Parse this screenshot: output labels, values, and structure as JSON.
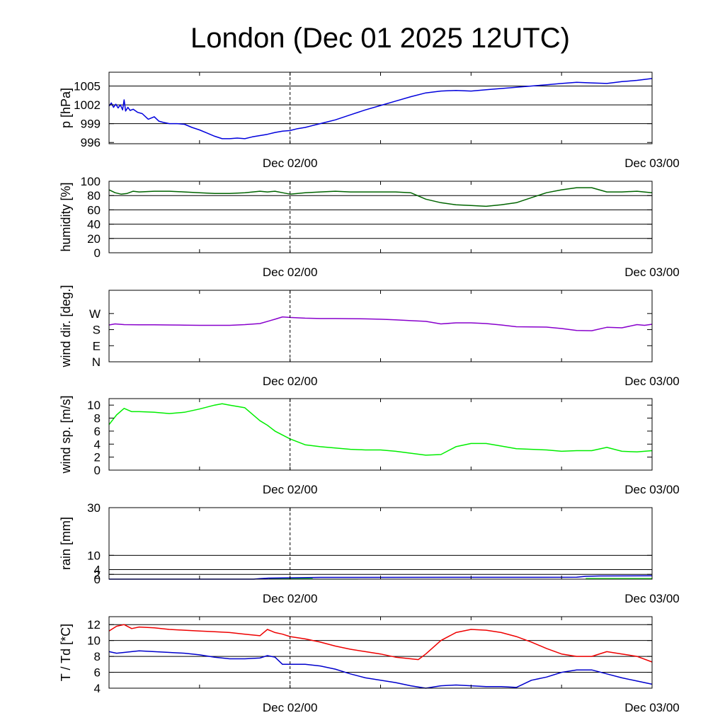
{
  "title": "London (Dec 01 2025 12UTC)",
  "x_axis": {
    "unit": "hours since Dec 01 12UTC",
    "range": [
      0,
      36
    ],
    "marker_hour": 12,
    "tick_labels": [
      {
        "label": "Dec 02/00",
        "hour": 12
      },
      {
        "label": "Dec 03/00",
        "hour": 36
      }
    ]
  },
  "chart_data": [
    {
      "type": "line",
      "name": "pressure",
      "ylabel": "p [hPa]",
      "ylim": [
        995.8,
        1007.2
      ],
      "ticks": [
        {
          "v": 996,
          "l": "996"
        },
        {
          "v": 999,
          "l": "999"
        },
        {
          "v": 1002,
          "l": "1002"
        },
        {
          "v": 1005,
          "l": "1005"
        }
      ],
      "grid": [
        999,
        1002,
        1005
      ],
      "series": [
        {
          "color": "#0000dd",
          "x": [
            0,
            0.15,
            0.3,
            0.45,
            0.6,
            0.75,
            0.9,
            1.0,
            1.1,
            1.25,
            1.4,
            1.6,
            1.9,
            2.2,
            2.6,
            3.0,
            3.3,
            3.6,
            4.0,
            4.5,
            5.0,
            5.5,
            6.0,
            6.5,
            7.0,
            7.5,
            8.0,
            8.5,
            9.0,
            9.5,
            10.0,
            10.5,
            11.0,
            11.5,
            12.0,
            12.5,
            13.0,
            13.5,
            14.0,
            14.5,
            15.0,
            16.0,
            17.0,
            18.0,
            19.0,
            20.0,
            21.0,
            22.0,
            23.0,
            24.0,
            25.0,
            26.0,
            27.0,
            28.0,
            29.0,
            30.0,
            31.0,
            32.0,
            33.0,
            34.0,
            35.0,
            36.0
          ],
          "y": [
            1001.8,
            1002.3,
            1001.6,
            1002.1,
            1001.5,
            1002.0,
            1001.2,
            1002.8,
            1001.0,
            1001.6,
            1001.1,
            1001.3,
            1000.8,
            1000.6,
            999.7,
            1000.1,
            999.4,
            999.2,
            999.0,
            999.0,
            998.9,
            998.4,
            998.0,
            997.5,
            997.0,
            996.6,
            996.6,
            996.7,
            996.6,
            996.9,
            997.1,
            997.3,
            997.6,
            997.8,
            997.9,
            998.2,
            998.4,
            998.7,
            999.0,
            999.3,
            999.6,
            1000.4,
            1001.2,
            1001.9,
            1002.6,
            1003.3,
            1003.9,
            1004.2,
            1004.3,
            1004.2,
            1004.4,
            1004.6,
            1004.8,
            1005.0,
            1005.2,
            1005.4,
            1005.6,
            1005.5,
            1005.4,
            1005.7,
            1005.9,
            1006.2
          ]
        }
      ]
    },
    {
      "type": "line",
      "name": "humidity",
      "ylabel": "humidity [%]",
      "ylim": [
        0,
        100
      ],
      "ticks": [
        {
          "v": 0,
          "l": "0"
        },
        {
          "v": 20,
          "l": "20"
        },
        {
          "v": 40,
          "l": "40"
        },
        {
          "v": 60,
          "l": "60"
        },
        {
          "v": 80,
          "l": "80"
        },
        {
          "v": 100,
          "l": "100"
        }
      ],
      "grid": [
        20,
        40,
        60,
        80
      ],
      "series": [
        {
          "color": "#006400",
          "x": [
            0,
            0.4,
            0.8,
            1.2,
            1.6,
            2,
            3,
            4,
            5,
            6,
            7,
            8,
            9,
            10,
            10.5,
            11,
            11.5,
            12,
            13,
            14,
            15,
            16,
            17,
            18,
            19,
            20,
            21,
            22,
            23,
            24,
            25,
            26,
            27,
            28,
            29,
            30,
            31,
            32,
            33,
            34,
            35,
            36
          ],
          "y": [
            88,
            84,
            82,
            83,
            86,
            85,
            86,
            86,
            85,
            84,
            83,
            83,
            84,
            86,
            85,
            86,
            84,
            82,
            84,
            85,
            86,
            85,
            85,
            85,
            85,
            84,
            75,
            70,
            67,
            66,
            65,
            67,
            70,
            77,
            84,
            88,
            91,
            91,
            85,
            85,
            86,
            84
          ]
        }
      ]
    },
    {
      "type": "line",
      "name": "wind direction",
      "ylabel": "wind dir. [deg.]",
      "ylim": [
        0,
        400
      ],
      "ticks": [
        {
          "v": 0,
          "l": "N"
        },
        {
          "v": 90,
          "l": "E"
        },
        {
          "v": 180,
          "l": "S"
        },
        {
          "v": 270,
          "l": "W"
        }
      ],
      "grid": [],
      "series": [
        {
          "color": "#8800cc",
          "x": [
            0,
            0.4,
            1,
            2,
            3,
            4,
            5,
            6,
            7,
            8,
            9,
            10,
            11,
            11.5,
            12,
            13,
            14,
            15,
            16,
            17,
            18,
            19,
            20,
            21,
            22,
            23,
            24,
            25,
            26,
            27,
            28,
            29,
            30,
            31,
            32,
            33,
            34,
            35,
            35.5,
            36
          ],
          "y": [
            206,
            212,
            208,
            207,
            207,
            206,
            205,
            204,
            204,
            204,
            208,
            214,
            238,
            251,
            248,
            244,
            242,
            242,
            241,
            240,
            238,
            235,
            230,
            226,
            212,
            218,
            218,
            214,
            206,
            196,
            195,
            194,
            186,
            175,
            174,
            193,
            190,
            208,
            204,
            210
          ]
        }
      ]
    },
    {
      "type": "line",
      "name": "wind speed",
      "ylabel": "wind sp. [m/s]",
      "ylim": [
        0,
        11
      ],
      "ticks": [
        {
          "v": 0,
          "l": "0"
        },
        {
          "v": 2,
          "l": "2"
        },
        {
          "v": 4,
          "l": "4"
        },
        {
          "v": 6,
          "l": "6"
        },
        {
          "v": 8,
          "l": "8"
        },
        {
          "v": 10,
          "l": "10"
        }
      ],
      "grid": [],
      "series": [
        {
          "color": "#00ee00",
          "x": [
            0,
            0.5,
            1,
            1.5,
            2,
            3,
            4,
            5,
            6,
            7,
            7.5,
            8,
            9,
            10,
            10.5,
            11,
            12,
            13,
            14,
            15,
            16,
            17,
            18,
            19,
            20,
            21,
            22,
            23,
            24,
            25,
            26,
            27,
            28,
            29,
            30,
            31,
            32,
            33,
            34,
            35,
            36
          ],
          "y": [
            7.0,
            8.5,
            9.5,
            9.0,
            9.0,
            8.9,
            8.7,
            8.9,
            9.4,
            10.0,
            10.2,
            10.0,
            9.6,
            7.6,
            6.9,
            6.0,
            4.8,
            3.9,
            3.6,
            3.4,
            3.2,
            3.1,
            3.1,
            2.9,
            2.6,
            2.3,
            2.4,
            3.6,
            4.1,
            4.1,
            3.7,
            3.3,
            3.2,
            3.1,
            2.9,
            3.0,
            3.0,
            3.5,
            2.9,
            2.8,
            3.0
          ]
        }
      ]
    },
    {
      "type": "bar",
      "name": "rain",
      "ylabel": "rain [mm]",
      "ylim": [
        0,
        30
      ],
      "ticks": [
        {
          "v": 0,
          "l": "0"
        },
        {
          "v": 2,
          "l": "2"
        },
        {
          "v": 4,
          "l": "4"
        },
        {
          "v": 10,
          "l": "10"
        },
        {
          "v": 30,
          "l": "30"
        }
      ],
      "grid": [
        2,
        4,
        10,
        30
      ],
      "bar_color": "#33ee33",
      "bars": [
        {
          "x0": 10.6,
          "x1": 13.5,
          "value": 0.45
        },
        {
          "x0": 13.5,
          "x1": 16.5,
          "value": 0.12
        },
        {
          "x0": 31.6,
          "x1": 36.0,
          "value": 0.5
        }
      ],
      "series": [
        {
          "color": "#0000cc",
          "x": [
            0,
            9.6,
            10.0,
            10.6,
            12.0,
            14.0,
            31.0,
            31.6,
            32.5,
            36.0
          ],
          "y": [
            0,
            0,
            0.25,
            0.45,
            0.55,
            0.75,
            0.8,
            1.2,
            1.35,
            1.4
          ]
        }
      ]
    },
    {
      "type": "line",
      "name": "temperature / dewpoint",
      "ylabel": "T / Td [*C]",
      "ylim": [
        4,
        13
      ],
      "ticks": [
        {
          "v": 4,
          "l": "4"
        },
        {
          "v": 6,
          "l": "6"
        },
        {
          "v": 8,
          "l": "8"
        },
        {
          "v": 10,
          "l": "10"
        },
        {
          "v": 12,
          "l": "12"
        }
      ],
      "grid": [
        6,
        8,
        10,
        12
      ],
      "series": [
        {
          "color": "#ee0000",
          "x": [
            0,
            0.5,
            1,
            1.5,
            2,
            3,
            4,
            5,
            6,
            7,
            8,
            9,
            10,
            10.5,
            11,
            11.5,
            12,
            13,
            14,
            15,
            16,
            17,
            18,
            19,
            20,
            20.5,
            21,
            22,
            23,
            24,
            25,
            26,
            27,
            28,
            29,
            30,
            31,
            32,
            33,
            34,
            35,
            36
          ],
          "y": [
            11.2,
            11.8,
            12.0,
            11.5,
            11.7,
            11.6,
            11.4,
            11.3,
            11.2,
            11.1,
            11.0,
            10.8,
            10.6,
            11.4,
            11.0,
            10.8,
            10.5,
            10.2,
            9.8,
            9.3,
            8.9,
            8.6,
            8.3,
            7.9,
            7.7,
            7.6,
            8.3,
            10.0,
            11.0,
            11.4,
            11.3,
            11.0,
            10.5,
            9.8,
            9.0,
            8.3,
            8.0,
            8.0,
            8.6,
            8.3,
            8.0,
            7.3
          ]
        },
        {
          "color": "#0000cc",
          "x": [
            0,
            0.5,
            1,
            2,
            3,
            4,
            5,
            6,
            7,
            8,
            9,
            10,
            10.5,
            11,
            11.5,
            12,
            13,
            14,
            15,
            16,
            17,
            18,
            19,
            20,
            21,
            22,
            23,
            24,
            25,
            26,
            27,
            28,
            29,
            30,
            31,
            32,
            33,
            34,
            35,
            36
          ],
          "y": [
            8.6,
            8.4,
            8.5,
            8.7,
            8.6,
            8.5,
            8.4,
            8.2,
            7.9,
            7.7,
            7.7,
            7.8,
            8.1,
            7.9,
            7.0,
            7.0,
            7.0,
            6.8,
            6.4,
            5.8,
            5.3,
            5.0,
            4.7,
            4.3,
            4.0,
            4.3,
            4.4,
            4.3,
            4.2,
            4.2,
            4.1,
            5.0,
            5.4,
            6.0,
            6.3,
            6.3,
            5.8,
            5.3,
            4.9,
            4.5
          ]
        }
      ]
    }
  ]
}
